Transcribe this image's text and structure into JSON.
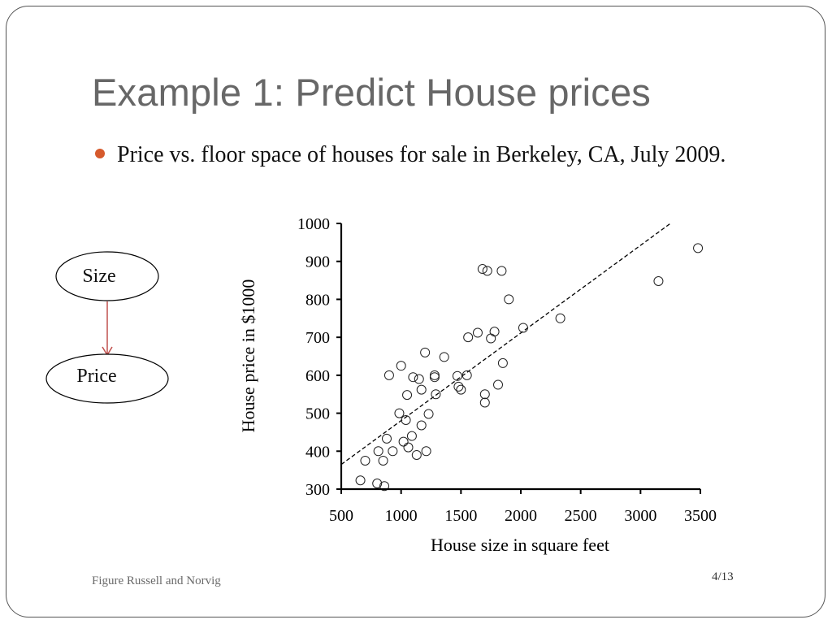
{
  "slide": {
    "title": "Example 1: Predict House prices",
    "bullet": "Price vs. floor space of houses for sale in Berkeley, CA, July 2009.",
    "footer": "Figure Russell and Norvig",
    "page_number": "4/13"
  },
  "diagram": {
    "nodes": [
      {
        "id": "size",
        "label": "Size"
      },
      {
        "id": "price",
        "label": "Price"
      }
    ],
    "edge": {
      "from": "size",
      "to": "price",
      "color": "#c0504d"
    }
  },
  "chart_data": {
    "type": "scatter",
    "title": "",
    "xlabel": "House size in square feet",
    "ylabel": "House price in $1000",
    "xlim": [
      500,
      3500
    ],
    "ylim": [
      300,
      1000
    ],
    "xticks": [
      500,
      1000,
      1500,
      2000,
      2500,
      3000,
      3500
    ],
    "yticks": [
      300,
      400,
      500,
      600,
      700,
      800,
      900,
      1000
    ],
    "grid": false,
    "legend": "none",
    "marker": "open-circle",
    "points": [
      {
        "x": 660,
        "y": 323
      },
      {
        "x": 700,
        "y": 375
      },
      {
        "x": 800,
        "y": 315
      },
      {
        "x": 810,
        "y": 400
      },
      {
        "x": 850,
        "y": 375
      },
      {
        "x": 860,
        "y": 308
      },
      {
        "x": 880,
        "y": 433
      },
      {
        "x": 900,
        "y": 600
      },
      {
        "x": 930,
        "y": 400
      },
      {
        "x": 985,
        "y": 500
      },
      {
        "x": 1000,
        "y": 625
      },
      {
        "x": 1020,
        "y": 425
      },
      {
        "x": 1040,
        "y": 482
      },
      {
        "x": 1050,
        "y": 548
      },
      {
        "x": 1060,
        "y": 410
      },
      {
        "x": 1090,
        "y": 440
      },
      {
        "x": 1100,
        "y": 595
      },
      {
        "x": 1130,
        "y": 390
      },
      {
        "x": 1150,
        "y": 590
      },
      {
        "x": 1170,
        "y": 468
      },
      {
        "x": 1170,
        "y": 562
      },
      {
        "x": 1200,
        "y": 660
      },
      {
        "x": 1210,
        "y": 400
      },
      {
        "x": 1230,
        "y": 498
      },
      {
        "x": 1280,
        "y": 595
      },
      {
        "x": 1280,
        "y": 600
      },
      {
        "x": 1290,
        "y": 550
      },
      {
        "x": 1360,
        "y": 648
      },
      {
        "x": 1470,
        "y": 598
      },
      {
        "x": 1480,
        "y": 570
      },
      {
        "x": 1500,
        "y": 562
      },
      {
        "x": 1550,
        "y": 600
      },
      {
        "x": 1560,
        "y": 700
      },
      {
        "x": 1640,
        "y": 712
      },
      {
        "x": 1680,
        "y": 880
      },
      {
        "x": 1700,
        "y": 528
      },
      {
        "x": 1700,
        "y": 550
      },
      {
        "x": 1720,
        "y": 875
      },
      {
        "x": 1750,
        "y": 697
      },
      {
        "x": 1780,
        "y": 715
      },
      {
        "x": 1810,
        "y": 575
      },
      {
        "x": 1840,
        "y": 875
      },
      {
        "x": 1850,
        "y": 632
      },
      {
        "x": 1900,
        "y": 800
      },
      {
        "x": 2020,
        "y": 725
      },
      {
        "x": 2330,
        "y": 750
      },
      {
        "x": 3150,
        "y": 848
      },
      {
        "x": 3480,
        "y": 935
      }
    ],
    "fit_line": {
      "style": "dashed",
      "from": {
        "x": 500,
        "y": 365
      },
      "to": {
        "x": 3250,
        "y": 1000
      }
    }
  }
}
